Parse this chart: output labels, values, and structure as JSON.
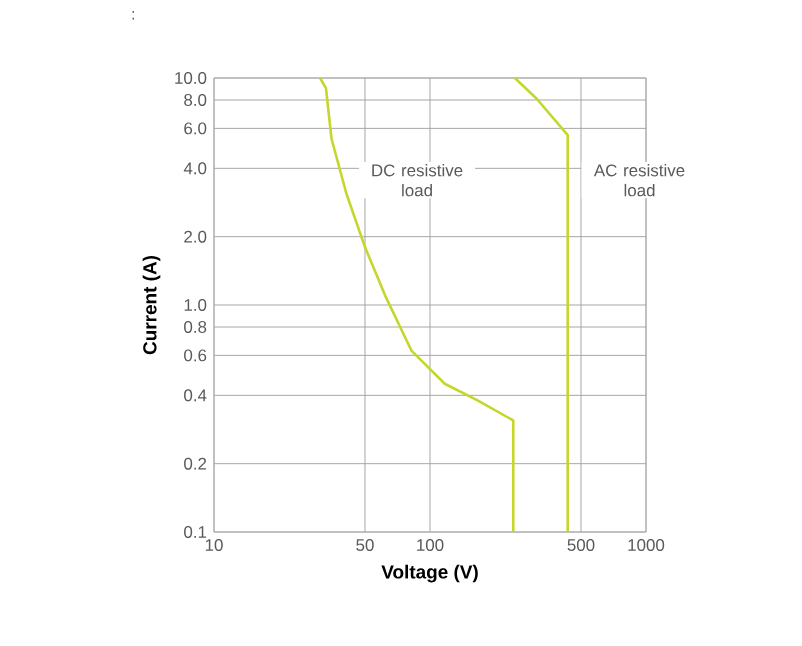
{
  "chart_data": {
    "type": "line",
    "xlabel": "Voltage (V)",
    "ylabel": "Current (A)",
    "log": "xy",
    "xlim": [
      10,
      1000
    ],
    "ylim": [
      0.1,
      10
    ],
    "xticks": [
      10,
      50,
      100,
      500,
      1000
    ],
    "yticks": [
      0.1,
      0.2,
      0.4,
      0.6,
      0.8,
      {
        "value": 1,
        "label": "1.0"
      },
      {
        "value": 2,
        "label": "2.0"
      },
      {
        "value": 4,
        "label": "4.0"
      },
      {
        "value": 6,
        "label": "6.0"
      },
      {
        "value": 8,
        "label": "8.0"
      },
      {
        "value": 10,
        "label": "10.0"
      }
    ],
    "grid": true,
    "marker": "none",
    "line_style": "solid",
    "series": [
      {
        "color": "#c5d62c",
        "x": [
          31,
          33,
          35,
          41,
          50,
          62,
          82,
          117,
          166,
          243,
          243
        ],
        "values": [
          10,
          9,
          5.4,
          3.1,
          1.8,
          1.1,
          0.63,
          0.45,
          0.38,
          0.31,
          0.1
        ]
      },
      {
        "color": "#c5d62c",
        "x": [
          247,
          312,
          434,
          434
        ],
        "values": [
          10,
          8.1,
          5.6,
          0.1
        ]
      }
    ],
    "annotations": [
      "DC resistive load",
      "AC resistive load",
      ":"
    ]
  }
}
